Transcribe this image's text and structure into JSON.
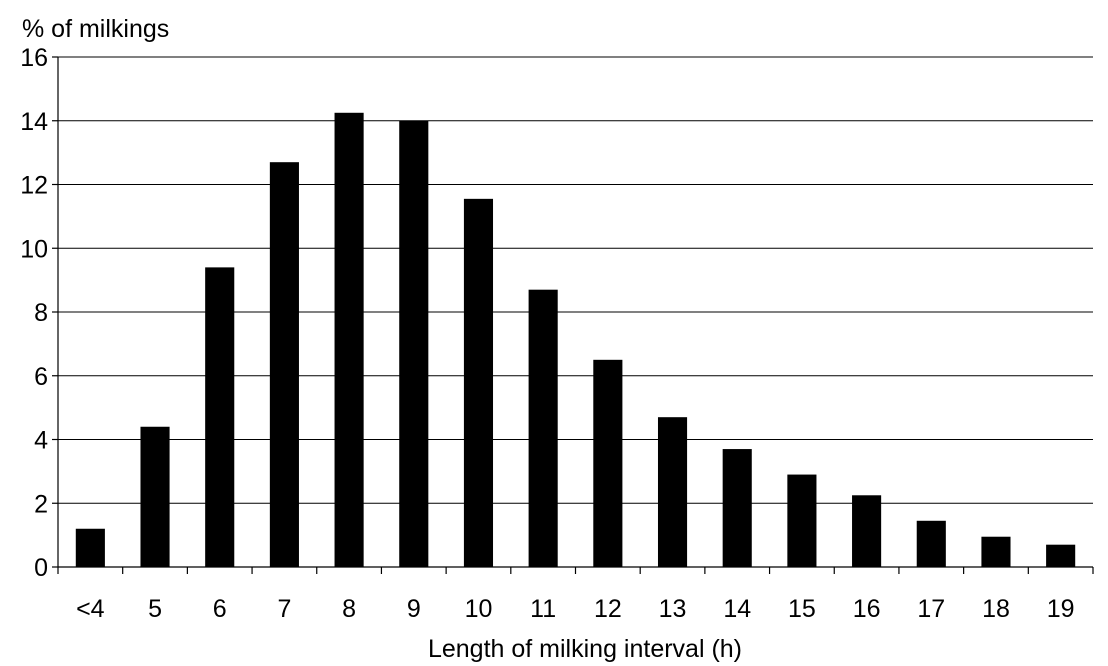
{
  "chart_data": {
    "type": "bar",
    "title": "",
    "ylabel": "% of milkings",
    "xlabel": "Length of milking interval (h)",
    "categories": [
      "<4",
      "5",
      "6",
      "7",
      "8",
      "9",
      "10",
      "11",
      "12",
      "13",
      "14",
      "15",
      "16",
      "17",
      "18",
      "19"
    ],
    "values": [
      1.2,
      4.4,
      9.4,
      12.7,
      14.25,
      14.0,
      11.55,
      8.7,
      6.5,
      4.7,
      3.7,
      2.9,
      2.25,
      1.45,
      0.95,
      0.7
    ],
    "ylim": [
      0,
      16
    ],
    "yticks": [
      "0",
      "2",
      "4",
      "6",
      "8",
      "10",
      "12",
      "14",
      "16"
    ],
    "grid": true,
    "legend": "none",
    "bar_color": "#000000",
    "grid_color": "#000000"
  }
}
